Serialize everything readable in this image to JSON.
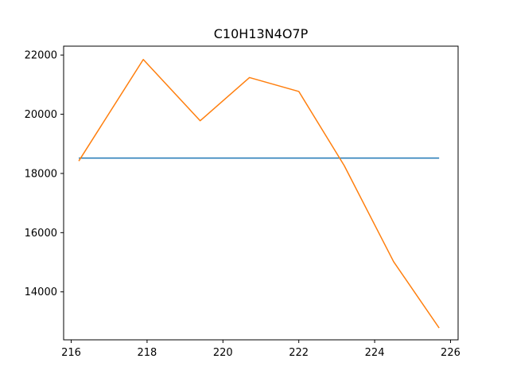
{
  "chart_data": {
    "type": "line",
    "title": "C10H13N4O7P",
    "xlabel": "",
    "ylabel": "",
    "xlim": [
      215.8,
      226.2
    ],
    "ylim": [
      12380,
      22300
    ],
    "xticks": [
      216,
      218,
      220,
      222,
      224,
      226
    ],
    "yticks": [
      14000,
      16000,
      18000,
      20000,
      22000
    ],
    "grid": false,
    "series": [
      {
        "color": "#1f77b4",
        "x": [
          216.2,
          225.7
        ],
        "y": [
          18520,
          18520
        ]
      },
      {
        "color": "#ff7f0e",
        "x": [
          216.2,
          217.9,
          219.4,
          220.7,
          222.0,
          223.2,
          224.5,
          225.7
        ],
        "y": [
          18420,
          21850,
          19780,
          21240,
          20770,
          18260,
          15020,
          12780
        ]
      }
    ]
  }
}
